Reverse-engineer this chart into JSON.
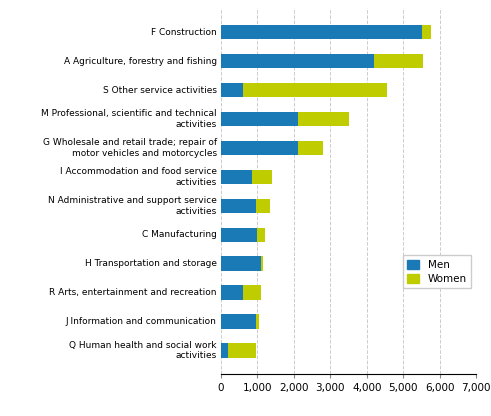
{
  "categories": [
    "F Construction",
    "A Agriculture, forestry and fishing",
    "S Other service activities",
    "M Professional, scientific and technical\nactivities",
    "G Wholesale and retail trade; repair of\nmotor vehicles and motorcycles",
    "I Accommodation and food service\nactivities",
    "N Administrative and support service\nactivities",
    "C Manufacturing",
    "H Transportation and storage",
    "R Arts, entertainment and recreation",
    "J Information and communication",
    "Q Human health and social work\nactivities"
  ],
  "men": [
    5500,
    4200,
    600,
    2100,
    2100,
    850,
    950,
    1000,
    1100,
    600,
    950,
    200
  ],
  "women": [
    250,
    1350,
    3950,
    1400,
    700,
    550,
    400,
    200,
    50,
    500,
    100,
    750
  ],
  "men_color": "#1a7ab5",
  "women_color": "#bfcc00",
  "xlim": [
    0,
    7000
  ],
  "xticks": [
    0,
    1000,
    2000,
    3000,
    4000,
    5000,
    6000,
    7000
  ],
  "xtick_labels": [
    "0",
    "1,000",
    "2,000",
    "3,000",
    "4,000",
    "5,000",
    "6,000",
    "7,000"
  ],
  "background_color": "#ffffff",
  "grid_color": "#cccccc",
  "legend_labels": [
    "Men",
    "Women"
  ]
}
